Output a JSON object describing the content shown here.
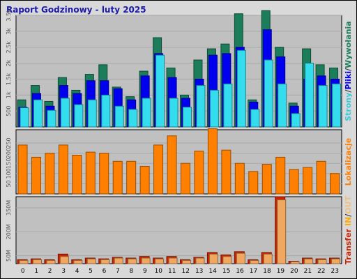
{
  "title": "Raport Godzinowy -  luty 2025",
  "colors": {
    "background": "#d9d9d9",
    "plot_bg": "#c0c0c0",
    "title": "#1a1aa8",
    "pages": "#1b7d5a",
    "files": "#0000ee",
    "hits": "#33ddee",
    "visits": "#ff7f00",
    "transfer_in": "#cc2200",
    "transfer_out": "#f0a860"
  },
  "chart_data": [
    {
      "type": "bar",
      "title": "",
      "categories": [
        "0",
        "1",
        "2",
        "3",
        "4",
        "5",
        "6",
        "7",
        "8",
        "9",
        "10",
        "11",
        "12",
        "13",
        "14",
        "15",
        "16",
        "17",
        "18",
        "19",
        "20",
        "21",
        "22",
        "23"
      ],
      "ylim": [
        0,
        3500
      ],
      "yticks": [
        "500",
        "1k",
        "1.5k",
        "2k",
        "2.5k",
        "3k",
        "3.5k"
      ],
      "ytick_values": [
        500,
        1000,
        1500,
        2000,
        2500,
        3000,
        3500
      ],
      "legend": {
        "placement": "right-vertical",
        "parts": [
          {
            "text": "Strony",
            "color": "#33ccdd"
          },
          {
            "text": "/",
            "color": "#333333"
          },
          {
            "text": "Pliki",
            "color": "#0000ee"
          },
          {
            "text": "/",
            "color": "#333333"
          },
          {
            "text": "Wywołania",
            "color": "#1b7d5a"
          }
        ]
      },
      "series": [
        {
          "name": "Wywołania",
          "color": "#1b7d5a",
          "values": [
            850,
            1300,
            800,
            1550,
            1150,
            1650,
            1950,
            1250,
            950,
            1750,
            2800,
            1850,
            1000,
            2100,
            2450,
            2600,
            3550,
            850,
            3650,
            2500,
            750,
            2450,
            1950,
            1850
          ]
        },
        {
          "name": "Pliki",
          "color": "#0000ee",
          "values": [
            620,
            1050,
            650,
            1300,
            1050,
            1450,
            1450,
            1200,
            850,
            1600,
            2300,
            1550,
            900,
            1500,
            2250,
            2300,
            2500,
            780,
            3050,
            2200,
            650,
            1500,
            1600,
            1500
          ]
        },
        {
          "name": "Strony",
          "color": "#33ddee",
          "values": [
            600,
            850,
            520,
            900,
            700,
            850,
            1000,
            650,
            550,
            900,
            2250,
            900,
            620,
            1300,
            1150,
            1350,
            2400,
            550,
            2100,
            1350,
            420,
            2000,
            1300,
            1350
          ]
        }
      ]
    },
    {
      "type": "bar",
      "title": "",
      "categories": [
        "0",
        "1",
        "2",
        "3",
        "4",
        "5",
        "6",
        "7",
        "8",
        "9",
        "10",
        "11",
        "12",
        "13",
        "14",
        "15",
        "16",
        "17",
        "18",
        "19",
        "20",
        "21",
        "22",
        "23"
      ],
      "ylim": [
        0,
        315
      ],
      "yticks": [
        "50",
        "100",
        "150",
        "200",
        "250"
      ],
      "ytick_values": [
        50,
        100,
        150,
        200,
        250
      ],
      "legend": {
        "placement": "right-vertical",
        "parts": [
          {
            "text": "Lokalizacje",
            "color": "#ff7f00"
          }
        ]
      },
      "series": [
        {
          "name": "Lokalizacje",
          "color": "#ff7f00",
          "values": [
            240,
            180,
            200,
            240,
            190,
            205,
            200,
            160,
            160,
            135,
            240,
            285,
            150,
            210,
            320,
            215,
            150,
            110,
            145,
            180,
            120,
            130,
            160,
            100
          ]
        }
      ]
    },
    {
      "type": "bar",
      "title": "",
      "categories": [
        "0",
        "1",
        "2",
        "3",
        "4",
        "5",
        "6",
        "7",
        "8",
        "9",
        "10",
        "11",
        "12",
        "13",
        "14",
        "15",
        "16",
        "17",
        "18",
        "19",
        "20",
        "21",
        "22",
        "23"
      ],
      "ylim": [
        0,
        420
      ],
      "yticks": [
        "50M",
        "200M",
        "350M"
      ],
      "ytick_values": [
        50,
        200,
        350
      ],
      "legend": {
        "placement": "right-vertical",
        "parts": [
          {
            "text": "Transfer",
            "color": "#cc2200"
          },
          {
            "text": " ",
            "color": "#cc2200"
          },
          {
            "text": "IN",
            "color": "#ffaa00"
          },
          {
            "text": "/",
            "color": "#333333"
          },
          {
            "text": "OUT",
            "color": "#f0c080"
          }
        ]
      },
      "series": [
        {
          "name": "IN",
          "color": "#cc2200",
          "values": [
            25,
            30,
            25,
            60,
            25,
            35,
            30,
            40,
            35,
            45,
            35,
            45,
            25,
            40,
            70,
            55,
            75,
            25,
            70,
            420,
            15,
            35,
            30,
            35
          ]
        },
        {
          "name": "OUT",
          "color": "#f0a860",
          "values": [
            20,
            25,
            20,
            45,
            20,
            30,
            25,
            35,
            30,
            35,
            30,
            35,
            20,
            35,
            60,
            45,
            65,
            20,
            60,
            400,
            12,
            30,
            25,
            30
          ]
        }
      ]
    }
  ]
}
